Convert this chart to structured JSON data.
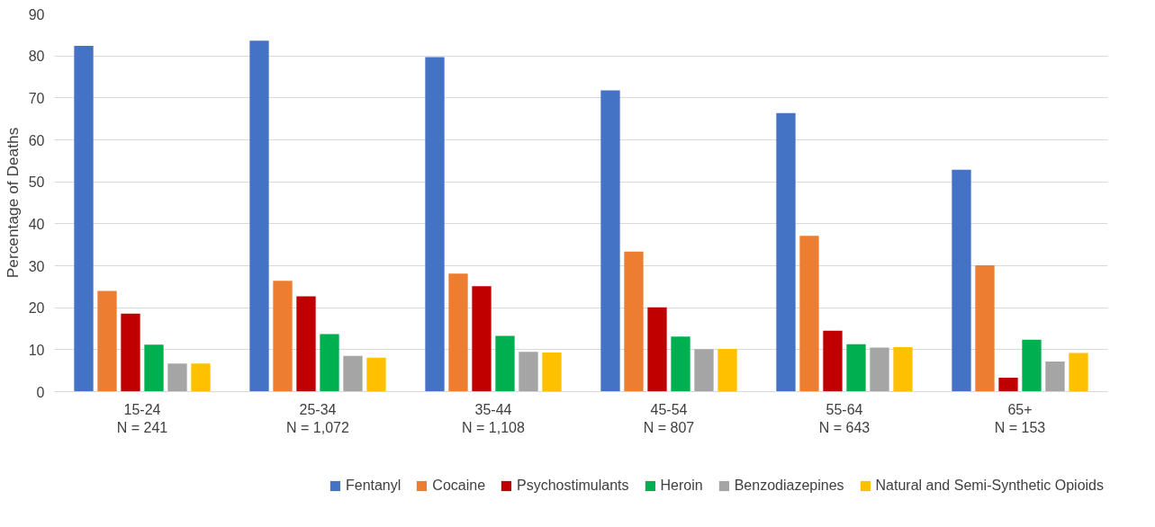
{
  "chart_data": {
    "type": "bar",
    "ylabel": "Percentage of Deaths",
    "categories": [
      "15-24\nN = 241",
      "25-34\nN = 1,072",
      "35-44\nN = 1,108",
      "45-54\nN = 807",
      "55-64\nN = 643",
      "65+\nN = 153"
    ],
    "series": [
      {
        "name": "Fentanyl",
        "color": "#4472c4",
        "values": [
          82.4,
          83.6,
          79.7,
          71.8,
          66.4,
          52.9
        ]
      },
      {
        "name": "Cocaine",
        "color": "#ed7d31",
        "values": [
          24.0,
          26.4,
          28.1,
          33.4,
          37.1,
          30.1
        ]
      },
      {
        "name": "Psychostimulants",
        "color": "#c00000",
        "values": [
          18.6,
          22.7,
          25.1,
          20.1,
          14.5,
          3.3
        ]
      },
      {
        "name": "Heroin",
        "color": "#00b050",
        "values": [
          11.2,
          13.7,
          13.3,
          13.1,
          11.3,
          12.4
        ]
      },
      {
        "name": "Benzodiazepines",
        "color": "#a5a5a5",
        "values": [
          6.7,
          8.5,
          9.5,
          10.1,
          10.5,
          7.2
        ]
      },
      {
        "name": "Natural and Semi-Synthetic Opioids",
        "color": "#ffc000",
        "values": [
          6.7,
          8.1,
          9.3,
          10.2,
          10.6,
          9.2
        ]
      }
    ],
    "ylim": [
      0,
      90
    ],
    "yticks": [
      0,
      10,
      20,
      30,
      40,
      50,
      60,
      70,
      80,
      90
    ],
    "grid": "y",
    "legend": "bottom"
  }
}
